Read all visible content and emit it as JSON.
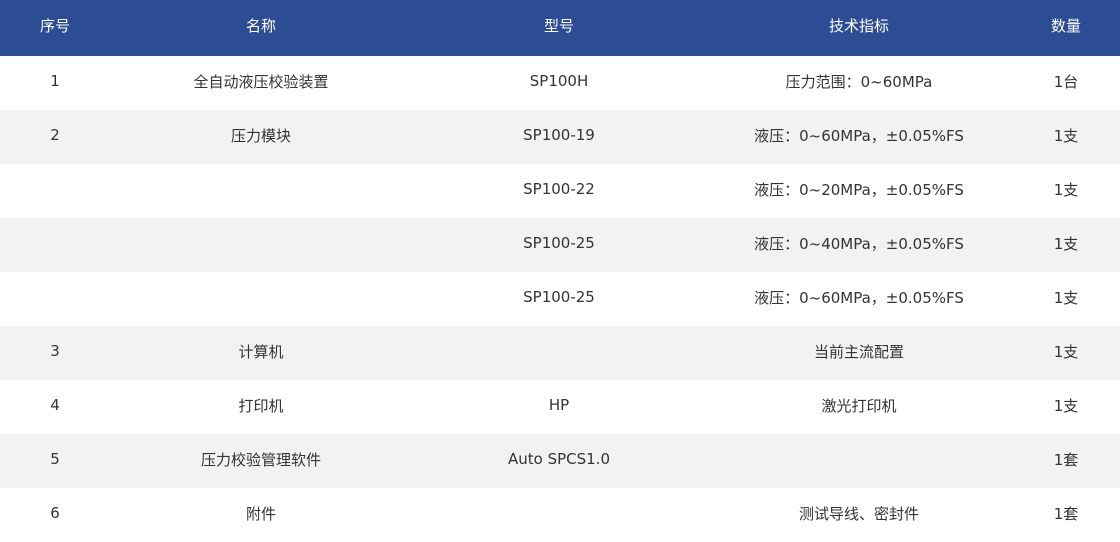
{
  "colors": {
    "header_bg": "#2c4c93",
    "header_text": "#ffffff",
    "row_alt": "#f2f2f2",
    "text": "#333333"
  },
  "table": {
    "headers": [
      "序号",
      "名称",
      "型号",
      "技术指标",
      "数量"
    ],
    "rows": [
      [
        "1",
        "全自动液压校验装置",
        "SP100H",
        "压力范围：0~60MPa",
        "1台"
      ],
      [
        "2",
        "压力模块",
        "SP100-19",
        "液压：0~60MPa，±0.05%FS",
        "1支"
      ],
      [
        "",
        "",
        "SP100-22",
        "液压：0~20MPa，±0.05%FS",
        "1支"
      ],
      [
        "",
        "",
        "SP100-25",
        "液压：0~40MPa，±0.05%FS",
        "1支"
      ],
      [
        "",
        "",
        "SP100-25",
        "液压：0~60MPa，±0.05%FS",
        "1支"
      ],
      [
        "3",
        "计算机",
        "",
        "当前主流配置",
        "1支"
      ],
      [
        "4",
        "打印机",
        "HP",
        "激光打印机",
        "1支"
      ],
      [
        "5",
        "压力校验管理软件",
        "Auto SPCS1.0",
        "",
        "1套"
      ],
      [
        "6",
        "附件",
        "",
        "测试导线、密封件",
        "1套"
      ]
    ]
  }
}
